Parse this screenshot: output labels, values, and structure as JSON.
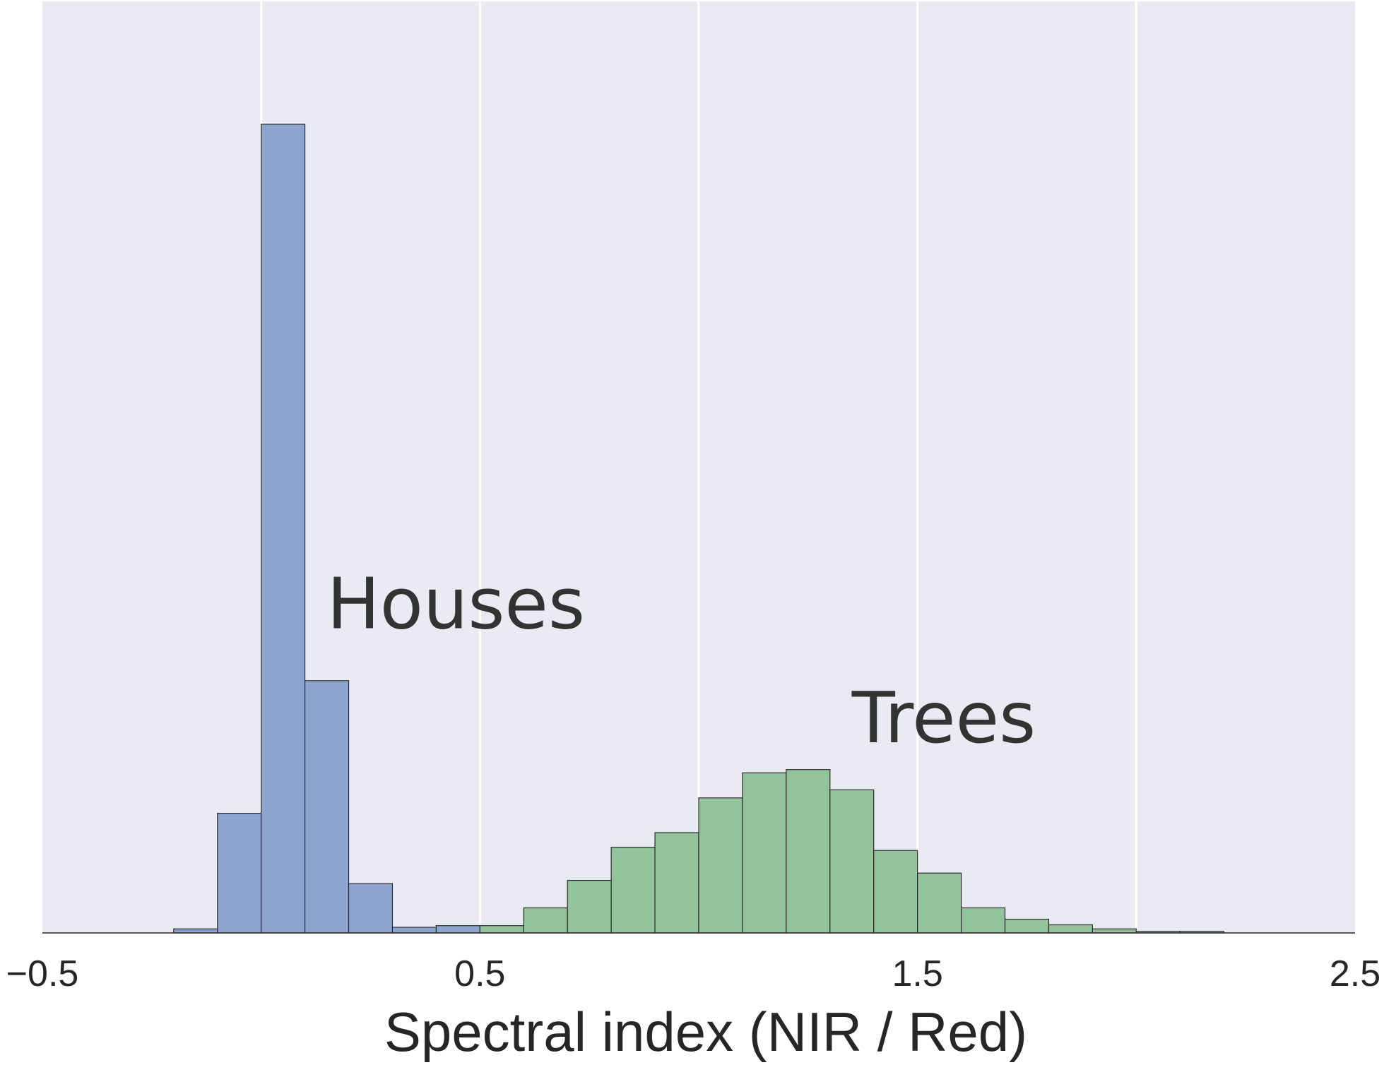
{
  "chart_data": {
    "type": "histogram",
    "xlabel": "Spectral index (NIR / Red)",
    "ylabel": "",
    "xlim": [
      -0.5,
      2.5
    ],
    "ylim": [
      0,
      1.0
    ],
    "xticks": [
      -0.5,
      0.5,
      1.5,
      2.5
    ],
    "xtick_labels": [
      "−0.5",
      "0.5",
      "1.5",
      "2.5"
    ],
    "grid": true,
    "y_ticks_shown": false,
    "background": "#eaeaf2",
    "bin_width": 0.1,
    "series": [
      {
        "name": "Houses",
        "color": "#8da5ce",
        "bins": [
          {
            "x0": -0.2,
            "x1": -0.1,
            "value": 0.005
          },
          {
            "x0": -0.1,
            "x1": 0.0,
            "value": 0.148
          },
          {
            "x0": 0.0,
            "x1": 0.1,
            "value": 1.0
          },
          {
            "x0": 0.1,
            "x1": 0.2,
            "value": 0.312
          },
          {
            "x0": 0.2,
            "x1": 0.3,
            "value": 0.061
          },
          {
            "x0": 0.3,
            "x1": 0.4,
            "value": 0.007
          },
          {
            "x0": 0.4,
            "x1": 0.5,
            "value": 0.009
          }
        ]
      },
      {
        "name": "Trees",
        "color": "#92c39b",
        "bins": [
          {
            "x0": 0.5,
            "x1": 0.6,
            "value": 0.009
          },
          {
            "x0": 0.6,
            "x1": 0.7,
            "value": 0.031
          },
          {
            "x0": 0.7,
            "x1": 0.8,
            "value": 0.065
          },
          {
            "x0": 0.8,
            "x1": 0.9,
            "value": 0.106
          },
          {
            "x0": 0.9,
            "x1": 1.0,
            "value": 0.124
          },
          {
            "x0": 1.0,
            "x1": 1.1,
            "value": 0.167
          },
          {
            "x0": 1.1,
            "x1": 1.2,
            "value": 0.198
          },
          {
            "x0": 1.2,
            "x1": 1.3,
            "value": 0.202
          },
          {
            "x0": 1.3,
            "x1": 1.4,
            "value": 0.177
          },
          {
            "x0": 1.4,
            "x1": 1.5,
            "value": 0.102
          },
          {
            "x0": 1.5,
            "x1": 1.6,
            "value": 0.074
          },
          {
            "x0": 1.6,
            "x1": 1.7,
            "value": 0.031
          },
          {
            "x0": 1.7,
            "x1": 1.8,
            "value": 0.017
          },
          {
            "x0": 1.8,
            "x1": 1.9,
            "value": 0.01
          },
          {
            "x0": 1.9,
            "x1": 2.0,
            "value": 0.005
          },
          {
            "x0": 2.0,
            "x1": 2.1,
            "value": 0.002
          },
          {
            "x0": 2.1,
            "x1": 2.2,
            "value": 0.002
          }
        ]
      }
    ],
    "annotations": [
      {
        "text": "Houses",
        "x": 0.15,
        "y": 0.377
      },
      {
        "text": "Trees",
        "x": 1.35,
        "y": 0.236
      }
    ]
  }
}
